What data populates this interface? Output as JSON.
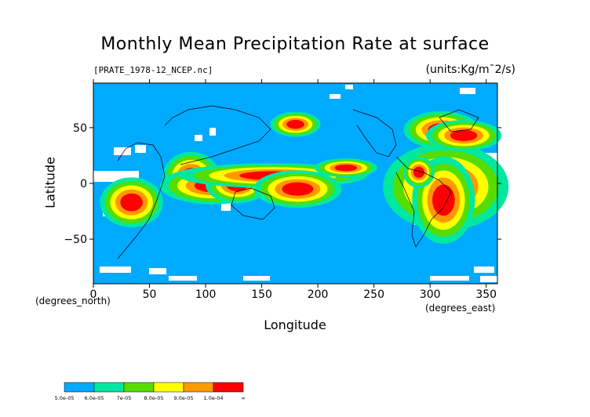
{
  "chart_data": {
    "type": "heatmap",
    "title": "Monthly Mean Precipitation Rate at surface",
    "source_label": "[PRATE_1978-12_NCEP.nc]",
    "units_label": "(units:Kg/m¯2/s)",
    "xlabel": "Longitude",
    "ylabel": "Latitude",
    "x_unit_label": "(degrees_east)",
    "y_unit_label": "(degrees_north)",
    "xlim": [
      0,
      360
    ],
    "ylim": [
      -90,
      90
    ],
    "x_ticks": [
      0,
      50,
      100,
      150,
      200,
      250,
      300,
      350
    ],
    "y_ticks": [
      -50,
      0,
      50
    ],
    "background_color": "#00aaff",
    "colorbar": {
      "levels": [
        "5.0e-05",
        "6.0e-05",
        "7e-05",
        "8.0e-05",
        "9.0e-05",
        "1.0e-04",
        "∞"
      ],
      "colors": [
        "#00aaff",
        "#00e8a0",
        "#55dd00",
        "#ffff00",
        "#ff9900",
        "#ff0000"
      ]
    },
    "regions": [
      {
        "class": 5,
        "x": [
          [
            78,
            90,
            0.3
          ]
        ]
      },
      {
        "level": 5,
        "lon": 87,
        "lat": 6,
        "w": 9,
        "h": 8
      },
      {
        "level": 5,
        "lon": 107,
        "lat": -2,
        "w": 17,
        "h": 6
      },
      {
        "level": 5,
        "lon": 128,
        "lat": -1,
        "w": 10,
        "h": 6
      },
      {
        "level": 5,
        "lon": 160,
        "lat": 7,
        "w": 30,
        "h": 4
      },
      {
        "level": 5,
        "lon": 182,
        "lat": -5,
        "w": 14,
        "h": 6
      },
      {
        "level": 5,
        "lon": 314,
        "lat": -3,
        "w": 20,
        "h": 14
      },
      {
        "level": 5,
        "lon": 312,
        "lat": -15,
        "w": 10,
        "h": 14
      },
      {
        "level": 5,
        "lon": 34,
        "lat": -17,
        "w": 10,
        "h": 8
      },
      {
        "level": 5,
        "lon": 290,
        "lat": 10,
        "w": 5,
        "h": 5
      },
      {
        "level": 5,
        "lon": 310,
        "lat": 48,
        "w": 12,
        "h": 6
      },
      {
        "level": 5,
        "lon": 330,
        "lat": 43,
        "w": 12,
        "h": 5
      },
      {
        "level": 5,
        "lon": 225,
        "lat": 14,
        "w": 10,
        "h": 3
      },
      {
        "level": 5,
        "lon": 180,
        "lat": 53,
        "w": 8,
        "h": 4
      }
    ]
  }
}
